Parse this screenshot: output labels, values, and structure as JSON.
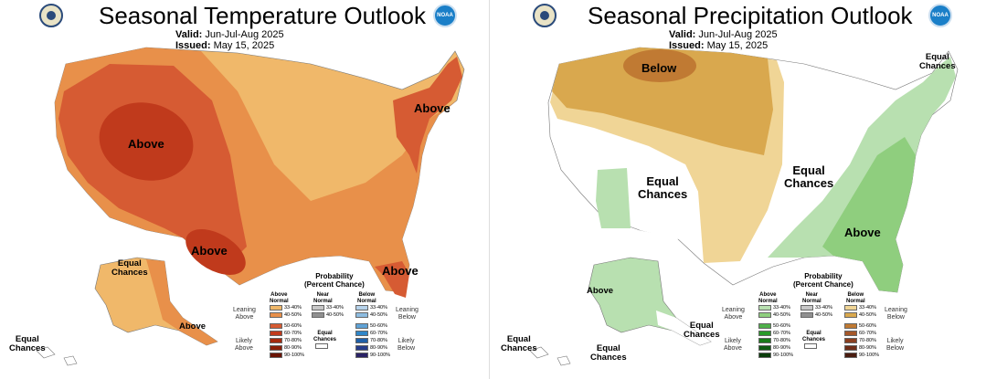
{
  "temperature": {
    "title": "Seasonal Temperature Outlook",
    "valid_label": "Valid:",
    "valid_value": "Jun-Jul-Aug 2025",
    "issued_label": "Issued:",
    "issued_value": "May 15, 2025",
    "regions": {
      "above_west": "Above",
      "above_northeast": "Above",
      "above_texas": "Above",
      "above_florida": "Above",
      "above_alaska": "Above",
      "equal_chances_alaska": "Equal\nChances",
      "equal_chances_hawaii": "Equal\nChances"
    },
    "colors": {
      "c33_40": "#f0b86a",
      "c40_50": "#e8904a",
      "c50_60": "#d65b33",
      "c60_70": "#c03a1c"
    }
  },
  "precipitation": {
    "title": "Seasonal Precipitation Outlook",
    "valid_label": "Valid:",
    "valid_value": "Jun-Jul-Aug 2025",
    "issued_label": "Issued:",
    "issued_value": "May 15, 2025",
    "regions": {
      "below_north": "Below",
      "equal_chances_southwest": "Equal\nChances",
      "equal_chances_central": "Equal\nChances",
      "equal_chances_northeast": "Equal\nChances",
      "above_southeast": "Above",
      "above_alaska": "Above",
      "equal_chances_alaska": "Equal\nChances",
      "equal_chances_alaska_south": "Equal\nChances",
      "equal_chances_hawaii": "Equal\nChances"
    },
    "colors": {
      "g33_40": "#b8e0b0",
      "g40_50": "#8fce7e",
      "b33_40": "#f0d596",
      "b40_50": "#d9a84e",
      "b50_60": "#c07a33"
    }
  },
  "legend": {
    "title": "Probability\n(Percent Chance)",
    "col_above": "Above\nNormal",
    "col_near": "Near\nNormal",
    "col_below": "Below\nNormal",
    "leaning_above": "Leaning\nAbove",
    "leaning_below": "Leaning\nBelow",
    "likely_above": "Likely\nAbove",
    "likely_below": "Likely\nBelow",
    "equal_chances": "Equal\nChances",
    "above_levels": [
      "33-40%",
      "40-50%",
      "50-60%",
      "60-70%",
      "70-80%",
      "80-90%",
      "90-100%"
    ],
    "near_levels": [
      "33-40%",
      "40-50%"
    ],
    "below_levels": [
      "33-40%",
      "40-50%",
      "50-60%",
      "60-70%",
      "70-80%",
      "80-90%",
      "90-100%"
    ],
    "temp_above_colors": [
      "#f0b86a",
      "#e8904a",
      "#d65b33",
      "#c03a1c",
      "#a52a0e",
      "#8a1f08",
      "#6a1404"
    ],
    "temp_below_colors": [
      "#b6d2ea",
      "#8ebce0",
      "#5fa2d6",
      "#2f86c8",
      "#1f5fa8",
      "#263c8a",
      "#2a2266"
    ],
    "precip_above_colors": [
      "#b8e0b0",
      "#8fce7e",
      "#4fb04a",
      "#2a9a2a",
      "#1a7a1a",
      "#0f5a12",
      "#0a3d0a"
    ],
    "precip_below_colors": [
      "#f0d596",
      "#d9a84e",
      "#c07a33",
      "#a5582a",
      "#8a3f20",
      "#6e2d18",
      "#4a1c10"
    ],
    "near_colors": [
      "#c8c8c8",
      "#909090"
    ]
  },
  "icons": {
    "commerce_seal": "commerce-seal-icon",
    "noaa_logo": "noaa-logo-icon",
    "noaa_text": "NOAA"
  }
}
